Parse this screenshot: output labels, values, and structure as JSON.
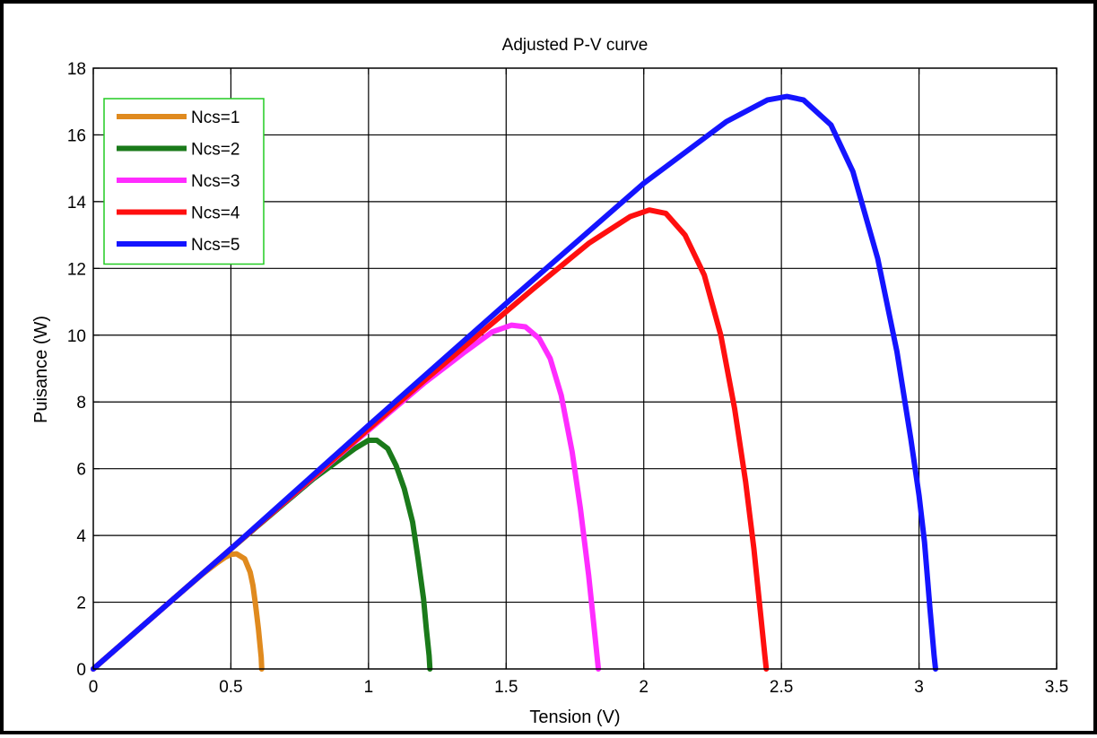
{
  "chart_data": {
    "type": "line",
    "title": "Adjusted P-V curve",
    "xlabel": "Tension (V)",
    "ylabel": "Puisance (W)",
    "xlim": [
      0,
      3.5
    ],
    "ylim": [
      0,
      18
    ],
    "xticks": [
      "0",
      "0.5",
      "1",
      "1.5",
      "2",
      "2.5",
      "3",
      "3.5"
    ],
    "yticks": [
      "0",
      "2",
      "4",
      "6",
      "8",
      "10",
      "12",
      "14",
      "16",
      "18"
    ],
    "grid": true,
    "legend_position": "top-left",
    "series": [
      {
        "name": "Ncs=1",
        "color": "#e08a1e",
        "x": [
          0,
          0.1,
          0.2,
          0.3,
          0.4,
          0.45,
          0.48,
          0.5,
          0.52,
          0.55,
          0.57,
          0.58,
          0.59,
          0.6,
          0.61,
          0.612
        ],
        "y": [
          0,
          0.72,
          1.44,
          2.16,
          2.86,
          3.18,
          3.35,
          3.43,
          3.45,
          3.3,
          2.9,
          2.5,
          1.9,
          1.2,
          0.35,
          0
        ]
      },
      {
        "name": "Ncs=2",
        "color": "#1a7a1a",
        "x": [
          0,
          0.2,
          0.4,
          0.6,
          0.8,
          0.9,
          0.95,
          1.0,
          1.03,
          1.07,
          1.1,
          1.13,
          1.16,
          1.18,
          1.2,
          1.21,
          1.22,
          1.223
        ],
        "y": [
          0,
          1.44,
          2.88,
          4.3,
          5.7,
          6.3,
          6.6,
          6.85,
          6.85,
          6.6,
          6.1,
          5.4,
          4.4,
          3.3,
          2.1,
          1.2,
          0.4,
          0
        ]
      },
      {
        "name": "Ncs=3",
        "color": "#ff2cff",
        "x": [
          0,
          0.3,
          0.6,
          0.9,
          1.2,
          1.35,
          1.45,
          1.52,
          1.57,
          1.62,
          1.66,
          1.7,
          1.74,
          1.77,
          1.8,
          1.82,
          1.835
        ],
        "y": [
          0,
          2.16,
          4.32,
          6.45,
          8.55,
          9.5,
          10.1,
          10.3,
          10.25,
          9.9,
          9.3,
          8.2,
          6.5,
          4.8,
          2.8,
          1.2,
          0
        ]
      },
      {
        "name": "Ncs=4",
        "color": "#ff0f0f",
        "x": [
          0,
          0.4,
          0.8,
          1.2,
          1.6,
          1.8,
          1.95,
          2.02,
          2.08,
          2.15,
          2.22,
          2.28,
          2.33,
          2.37,
          2.4,
          2.42,
          2.44,
          2.445
        ],
        "y": [
          0,
          2.88,
          5.76,
          8.62,
          11.4,
          12.75,
          13.55,
          13.75,
          13.65,
          13.0,
          11.8,
          10.0,
          7.8,
          5.6,
          3.6,
          2.0,
          0.4,
          0
        ]
      },
      {
        "name": "Ncs=5",
        "color": "#1414ff",
        "x": [
          0,
          0.5,
          1.0,
          1.5,
          2.0,
          2.3,
          2.45,
          2.52,
          2.58,
          2.68,
          2.76,
          2.85,
          2.92,
          2.97,
          3.0,
          3.02,
          3.04,
          3.055,
          3.06
        ],
        "y": [
          0,
          3.6,
          7.3,
          10.95,
          14.55,
          16.4,
          17.05,
          17.15,
          17.05,
          16.3,
          14.9,
          12.3,
          9.5,
          6.9,
          5.2,
          3.8,
          1.8,
          0.4,
          0
        ]
      }
    ]
  }
}
